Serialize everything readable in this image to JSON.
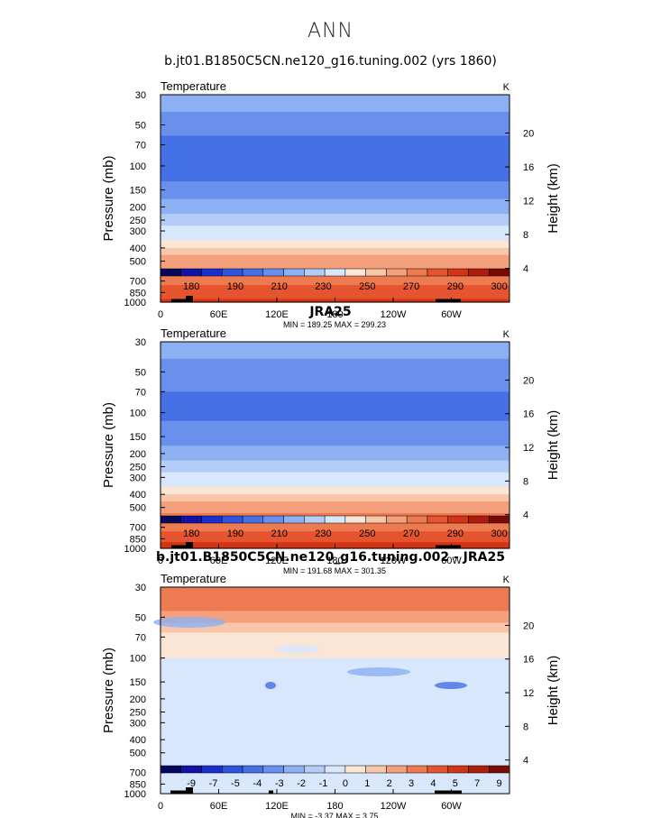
{
  "page_title": "ANN",
  "colors": {
    "temp_scale": [
      "#06065a",
      "#1212a8",
      "#1b2fd0",
      "#2f54e0",
      "#4570e6",
      "#6890ec",
      "#8cb0f2",
      "#b3cdf6",
      "#d8e7fb",
      "#fbe6d6",
      "#f8c7ab",
      "#f4a07c",
      "#ee7a52",
      "#e5542e",
      "#d23415",
      "#ae1d0c",
      "#7a0a04"
    ],
    "diff_scale": [
      "#06065a",
      "#1212a8",
      "#1b2fd0",
      "#2f54e0",
      "#4570e6",
      "#6890ec",
      "#8cb0f2",
      "#b3cdf6",
      "#d8e7fb",
      "#fbe6d6",
      "#f8c7ab",
      "#f4a07c",
      "#ee7a52",
      "#e5542e",
      "#d23415",
      "#ae1d0c",
      "#7a0a04"
    ],
    "topo": "#000000"
  },
  "chart_data": [
    {
      "type": "heatmap",
      "title": "b.jt01.B1850C5CN.ne120_g16.tuning.002 (yrs 1860)",
      "variable": "Temperature",
      "units": "K",
      "ylabel": "Pressure (mb)",
      "ylabel_right": "Height (km)",
      "x_ticks": [
        "0",
        "60E",
        "120E",
        "180",
        "120W",
        "60W"
      ],
      "x_tick_lon": [
        0,
        60,
        120,
        180,
        240,
        300
      ],
      "xlim": [
        0,
        360
      ],
      "y_ticks": [
        "30",
        "50",
        "70",
        "100",
        "150",
        "200",
        "250",
        "300",
        "400",
        "500",
        "700",
        "850",
        "1000"
      ],
      "y_tick_p": [
        30,
        50,
        70,
        100,
        150,
        200,
        250,
        300,
        400,
        500,
        700,
        850,
        1000
      ],
      "ylim_p": [
        30,
        1000
      ],
      "height_ticks": [
        "20",
        "16",
        "12",
        "8",
        "4"
      ],
      "height_km": [
        20,
        16,
        12,
        8,
        4
      ],
      "profile_p": [
        30,
        40,
        50,
        60,
        70,
        85,
        100,
        115,
        130,
        150,
        175,
        200,
        225,
        250,
        275,
        300,
        350,
        400,
        450,
        500,
        550,
        600,
        650,
        700,
        750,
        800,
        850,
        900,
        950,
        1000
      ],
      "profile_t": [
        215,
        212,
        206,
        200,
        196,
        195,
        196,
        198,
        201,
        205,
        210,
        214,
        219,
        223,
        228,
        232,
        242,
        251,
        257,
        263,
        267,
        271,
        274,
        277,
        280,
        283,
        285,
        287,
        289,
        291
      ],
      "min_text": "MIN = 189.25",
      "max_text": "MAX = 299.23",
      "colorbar_labels": [
        "180",
        "190",
        "210",
        "230",
        "250",
        "270",
        "290",
        "300"
      ],
      "colorbar_levels": [
        175,
        180,
        185,
        190,
        200,
        210,
        220,
        230,
        240,
        250,
        260,
        270,
        280,
        290,
        295,
        300
      ]
    },
    {
      "type": "heatmap",
      "title": "JRA25",
      "variable": "Temperature",
      "units": "K",
      "ylabel": "Pressure (mb)",
      "ylabel_right": "Height (km)",
      "x_ticks": [
        "0",
        "60E",
        "120E",
        "180",
        "120W",
        "60W"
      ],
      "x_tick_lon": [
        0,
        60,
        120,
        180,
        240,
        300
      ],
      "xlim": [
        0,
        360
      ],
      "y_ticks": [
        "30",
        "50",
        "70",
        "100",
        "150",
        "200",
        "250",
        "300",
        "400",
        "500",
        "700",
        "850",
        "1000"
      ],
      "y_tick_p": [
        30,
        50,
        70,
        100,
        150,
        200,
        250,
        300,
        400,
        500,
        700,
        850,
        1000
      ],
      "ylim_p": [
        30,
        1000
      ],
      "height_ticks": [
        "20",
        "16",
        "12",
        "8",
        "4"
      ],
      "height_km": [
        20,
        16,
        12,
        8,
        4
      ],
      "profile_p": [
        30,
        40,
        50,
        60,
        70,
        85,
        100,
        115,
        130,
        150,
        175,
        200,
        225,
        250,
        275,
        300,
        350,
        400,
        450,
        500,
        550,
        600,
        650,
        700,
        750,
        800,
        850,
        900,
        950,
        1000
      ],
      "profile_t": [
        216,
        212,
        207,
        202,
        198,
        197,
        198,
        200,
        203,
        206,
        211,
        215,
        220,
        224,
        229,
        233,
        243,
        252,
        258,
        264,
        268,
        272,
        275,
        278,
        281,
        284,
        287,
        290,
        292,
        294
      ],
      "min_text": "MIN = 191.68",
      "max_text": "MAX = 301.35",
      "colorbar_labels": [
        "180",
        "190",
        "210",
        "230",
        "250",
        "270",
        "290",
        "300"
      ],
      "colorbar_levels": [
        175,
        180,
        185,
        190,
        200,
        210,
        220,
        230,
        240,
        250,
        260,
        270,
        280,
        290,
        295,
        300
      ]
    },
    {
      "type": "heatmap",
      "title": "b.jt01.B1850C5CN.ne120_g16.tuning.002 - JRA25",
      "variable": "Temperature",
      "units": "K",
      "ylabel": "Pressure (mb)",
      "ylabel_right": "Height (km)",
      "x_ticks": [
        "0",
        "60E",
        "120E",
        "180",
        "120W",
        "60W"
      ],
      "x_tick_lon": [
        0,
        60,
        120,
        180,
        240,
        300
      ],
      "xlim": [
        0,
        360
      ],
      "y_ticks": [
        "30",
        "50",
        "70",
        "100",
        "150",
        "200",
        "250",
        "300",
        "400",
        "500",
        "700",
        "850",
        "1000"
      ],
      "y_tick_p": [
        30,
        50,
        70,
        100,
        150,
        200,
        250,
        300,
        400,
        500,
        700,
        850,
        1000
      ],
      "ylim_p": [
        30,
        1000
      ],
      "height_ticks": [
        "20",
        "16",
        "12",
        "8",
        "4"
      ],
      "height_km": [
        20,
        16,
        12,
        8,
        4
      ],
      "profile_p": [
        30,
        35,
        40,
        45,
        50,
        55,
        60,
        65,
        70,
        100,
        150,
        200,
        250,
        300,
        400,
        500,
        700,
        850,
        1000
      ],
      "profile_t": [
        3.3,
        2.8,
        2.3,
        1.8,
        1.3,
        0.8,
        0.4,
        0.1,
        -0.5,
        -1.2,
        -1.3,
        -1.4,
        -1.6,
        -1.4,
        -1.3,
        -1.2,
        -1.3,
        -1.5,
        -1.8
      ],
      "min_text": "MIN =   -3.37",
      "max_text": "MAX =    3.75",
      "colorbar_labels": [
        "-9",
        "-7",
        "-5",
        "-4",
        "-3",
        "-2",
        "-1",
        "0",
        "1",
        "2",
        "3",
        "4",
        "5",
        "7",
        "9"
      ],
      "colorbar_levels": [
        -10,
        -9,
        -8,
        -7,
        -6,
        -5,
        -4,
        -3,
        -2,
        -1,
        0,
        1,
        2,
        3,
        4,
        5,
        7,
        9
      ]
    }
  ]
}
